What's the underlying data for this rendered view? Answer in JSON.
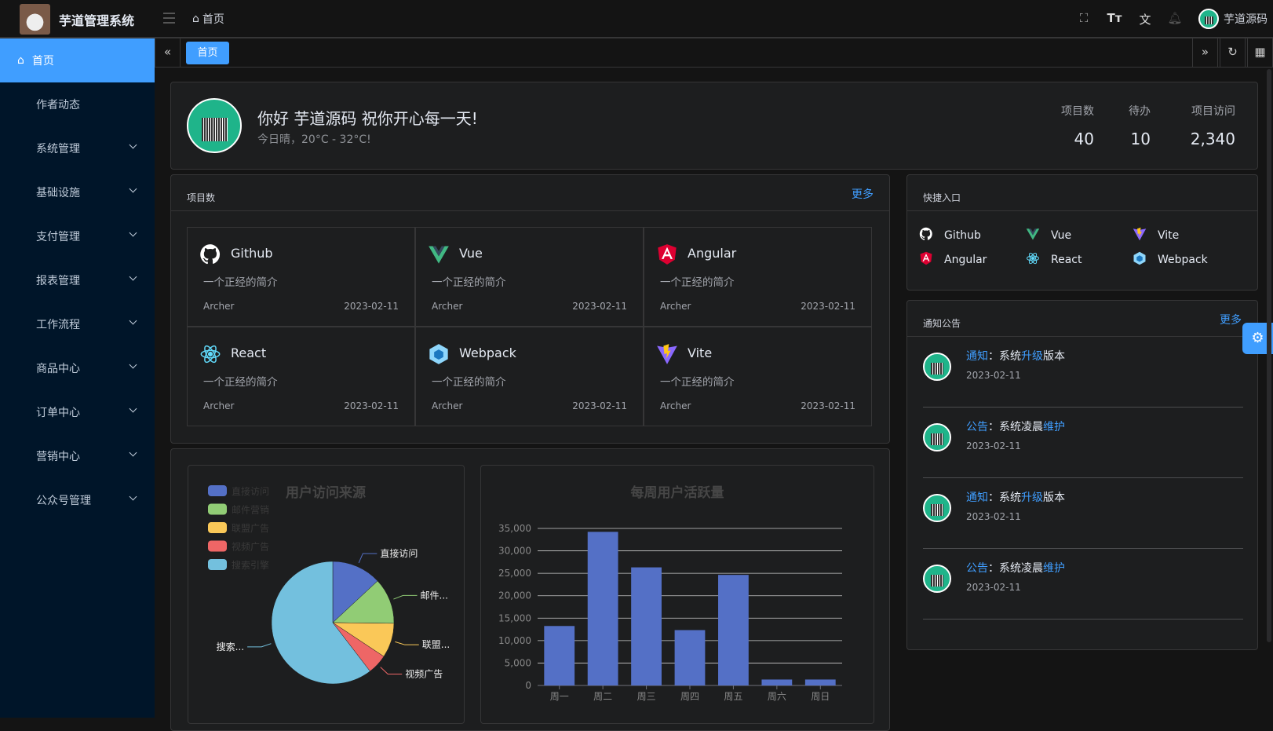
{
  "header": {
    "app_title": "芋道管理系统",
    "breadcrumb": "首页",
    "user_name": "芋道源码",
    "icons": [
      "fullscreen-icon",
      "font-size-icon",
      "translate-icon",
      "bell-icon"
    ]
  },
  "sidebar": {
    "items": [
      {
        "label": "首页",
        "active": true
      },
      {
        "label": "作者动态"
      },
      {
        "label": "系统管理",
        "has_children": true
      },
      {
        "label": "基础设施",
        "has_children": true
      },
      {
        "label": "支付管理",
        "has_children": true
      },
      {
        "label": "报表管理",
        "has_children": true
      },
      {
        "label": "工作流程",
        "has_children": true
      },
      {
        "label": "商品中心",
        "has_children": true
      },
      {
        "label": "订单中心",
        "has_children": true
      },
      {
        "label": "营销中心",
        "has_children": true
      },
      {
        "label": "公众号管理",
        "has_children": true
      }
    ]
  },
  "tags": {
    "active": "首页"
  },
  "welcome": {
    "greeting": "你好 芋道源码 祝你开心每一天!",
    "weather": "今日晴，20°C - 32°C!",
    "stats": [
      {
        "label": "项目数",
        "value": "40"
      },
      {
        "label": "待办",
        "value": "10"
      },
      {
        "label": "项目访问",
        "value": "2,340"
      }
    ]
  },
  "projects": {
    "title": "项目数",
    "more": "更多",
    "items": [
      {
        "name": "Github",
        "desc": "一个正经的简介",
        "author": "Archer",
        "date": "2023-02-11",
        "icon": "github-icon"
      },
      {
        "name": "Vue",
        "desc": "一个正经的简介",
        "author": "Archer",
        "date": "2023-02-11",
        "icon": "vue-icon"
      },
      {
        "name": "Angular",
        "desc": "一个正经的简介",
        "author": "Archer",
        "date": "2023-02-11",
        "icon": "angular-icon"
      },
      {
        "name": "React",
        "desc": "一个正经的简介",
        "author": "Archer",
        "date": "2023-02-11",
        "icon": "react-icon"
      },
      {
        "name": "Webpack",
        "desc": "一个正经的简介",
        "author": "Archer",
        "date": "2023-02-11",
        "icon": "webpack-icon"
      },
      {
        "name": "Vite",
        "desc": "一个正经的简介",
        "author": "Archer",
        "date": "2023-02-11",
        "icon": "vite-icon"
      }
    ]
  },
  "shortcuts": {
    "title": "快捷入口",
    "items": [
      {
        "name": "Github",
        "icon": "github-icon"
      },
      {
        "name": "Vue",
        "icon": "vue-icon"
      },
      {
        "name": "Vite",
        "icon": "vite-icon"
      },
      {
        "name": "Angular",
        "icon": "angular-icon"
      },
      {
        "name": "React",
        "icon": "react-icon"
      },
      {
        "name": "Webpack",
        "icon": "webpack-icon"
      }
    ]
  },
  "notices": {
    "title": "通知公告",
    "more": "更多",
    "items": [
      {
        "type": "通知",
        "pre": "：系统",
        "hl": "升级",
        "post": "版本",
        "date": "2023-02-11"
      },
      {
        "type": "公告",
        "pre": "：系统凌晨",
        "hl": "维护",
        "post": "",
        "date": "2023-02-11"
      },
      {
        "type": "通知",
        "pre": "：系统",
        "hl": "升级",
        "post": "版本",
        "date": "2023-02-11"
      },
      {
        "type": "公告",
        "pre": "：系统凌晨",
        "hl": "维护",
        "post": "",
        "date": "2023-02-11"
      }
    ]
  },
  "chart_data": [
    {
      "type": "pie",
      "title": "用户访问来源",
      "legend_position": "top-left",
      "categories": [
        "直接访问",
        "邮件营销",
        "联盟广告",
        "视频广告",
        "搜索引擎"
      ],
      "slice_labels": [
        "直接访问",
        "邮件...",
        "联盟...",
        "视频广告",
        "搜索..."
      ],
      "values": [
        335,
        310,
        234,
        135,
        1548
      ],
      "colors": [
        "#5470c6",
        "#91cc75",
        "#fac858",
        "#ee6666",
        "#73c0de"
      ]
    },
    {
      "type": "bar",
      "title": "每周用户活跃量",
      "categories": [
        "周一",
        "周二",
        "周三",
        "周四",
        "周五",
        "周六",
        "周日"
      ],
      "values": [
        13253,
        34235,
        26321,
        12340,
        24643,
        1322,
        1324
      ],
      "ylim": [
        0,
        35000
      ],
      "yticks": [
        "0",
        "5,000",
        "10,000",
        "15,000",
        "20,000",
        "25,000",
        "30,000",
        "35,000"
      ],
      "grid": true,
      "color": "#5470c6"
    }
  ]
}
